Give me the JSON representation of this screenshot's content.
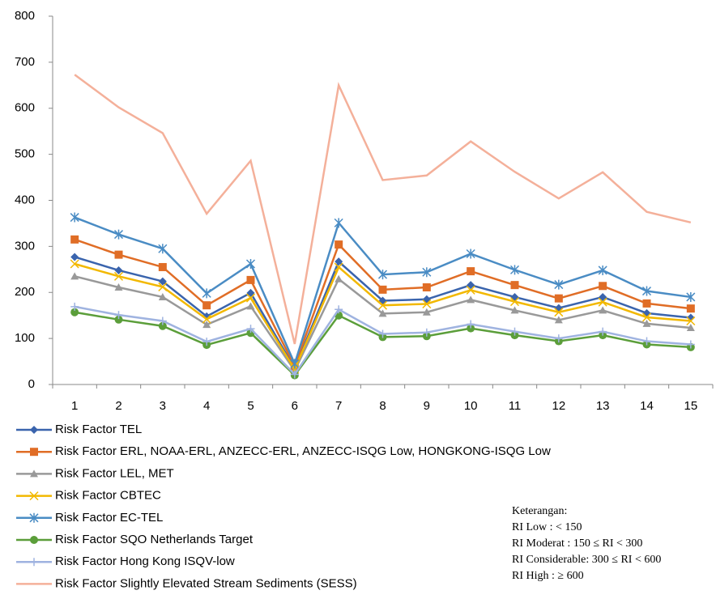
{
  "chart_data": {
    "type": "line",
    "categories": [
      "1",
      "2",
      "3",
      "4",
      "5",
      "6",
      "7",
      "8",
      "9",
      "10",
      "11",
      "12",
      "13",
      "14",
      "15"
    ],
    "ylim": [
      0,
      800
    ],
    "yticks": [
      0,
      100,
      200,
      300,
      400,
      500,
      600,
      700,
      800
    ],
    "grid": false,
    "series": [
      {
        "name": "Risk Factor TEL",
        "color": "#3a64ad",
        "marker": "diamond",
        "values": [
          277,
          248,
          224,
          148,
          199,
          35,
          267,
          182,
          185,
          216,
          190,
          166,
          190,
          155,
          145
        ]
      },
      {
        "name": "Risk Factor ERL, NOAA-ERL, ANZECC-ERL, ANZECC-ISQG Low, HONGKONG-ISQG Low",
        "color": "#e06d26",
        "marker": "square",
        "values": [
          315,
          282,
          255,
          172,
          227,
          40,
          304,
          206,
          211,
          246,
          216,
          187,
          214,
          176,
          165
        ]
      },
      {
        "name": "Risk Factor LEL, MET",
        "color": "#999999",
        "marker": "triangle",
        "values": [
          235,
          211,
          190,
          130,
          170,
          30,
          229,
          154,
          157,
          184,
          161,
          140,
          161,
          132,
          123
        ]
      },
      {
        "name": "Risk Factor CBTEC",
        "color": "#f2b800",
        "marker": "x",
        "values": [
          262,
          235,
          212,
          142,
          188,
          33,
          255,
          172,
          175,
          205,
          180,
          157,
          179,
          146,
          138
        ]
      },
      {
        "name": "Risk Factor EC-TEL",
        "color": "#4a8cc4",
        "marker": "star",
        "values": [
          363,
          326,
          295,
          198,
          262,
          45,
          351,
          239,
          244,
          284,
          249,
          217,
          248,
          203,
          190
        ]
      },
      {
        "name": "Risk Factor SQO Netherlands Target",
        "color": "#5b9e3a",
        "marker": "circle",
        "values": [
          157,
          141,
          127,
          86,
          112,
          20,
          150,
          103,
          105,
          122,
          107,
          94,
          107,
          87,
          81
        ]
      },
      {
        "name": "Risk Factor Hong Kong ISQV-low",
        "color": "#9fb3e0",
        "marker": "plus",
        "values": [
          169,
          151,
          138,
          93,
          121,
          22,
          163,
          110,
          113,
          131,
          115,
          100,
          115,
          94,
          87
        ]
      },
      {
        "name": "Risk Factor Slightly Elevated Stream Sediments (SESS)",
        "color": "#f4b09a",
        "marker": "none",
        "values": [
          673,
          602,
          546,
          371,
          486,
          88,
          650,
          444,
          454,
          528,
          462,
          404,
          461,
          375,
          352
        ]
      }
    ],
    "annotation": {
      "title": "Keterangan:",
      "lines": [
        "RI Low : < 150",
        "RI Moderat : 150 ≤ RI < 300",
        "RI Considerable: 300 ≤ RI < 600",
        "RI High : ≥ 600"
      ]
    }
  }
}
